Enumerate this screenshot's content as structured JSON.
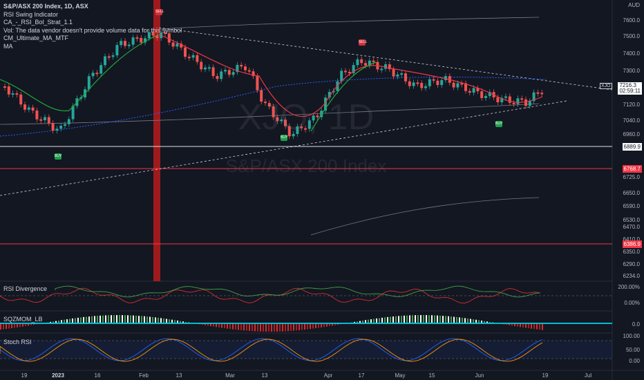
{
  "legend": {
    "symbol": "S&P/ASX 200 Index, 1D, ASX",
    "lines": [
      "RSI Swing Indicator",
      "CA_-_RSI_Bol_Strat_1.1",
      "Vol: The data vendor doesn't provide volume data for this symbol",
      "CM_Ultimate_MA_MTF",
      "MA"
    ]
  },
  "watermark": {
    "ticker": "XJO, 1D",
    "name": "S&P/ASX 200 Index"
  },
  "currency": "AUD",
  "price_ticks": [
    "7600.0",
    "7500.0",
    "7400.0",
    "7300.0",
    "7120.0",
    "7040.0",
    "6960.0",
    "6725.0",
    "6650.0",
    "6590.0",
    "6530.0",
    "6470.0",
    "6410.0",
    "6350.0",
    "6290.0",
    "6234.0"
  ],
  "price_tags": {
    "current": {
      "value": "7216.3",
      "countdown": "02:59:11",
      "color": "#ffffff"
    },
    "xjo_label": "XJO",
    "levels": [
      {
        "value": "6889.9",
        "color": "#ffffff"
      },
      {
        "value": "6768.7",
        "color": "#f23645"
      },
      {
        "value": "6386.9",
        "color": "#f23645"
      }
    ]
  },
  "time_ticks": [
    {
      "label": "19",
      "bold": false
    },
    {
      "label": "2023",
      "bold": true
    },
    {
      "label": "16",
      "bold": false
    },
    {
      "label": "Feb",
      "bold": false
    },
    {
      "label": "13",
      "bold": false
    },
    {
      "label": "Mar",
      "bold": false
    },
    {
      "label": "13",
      "bold": false
    },
    {
      "label": "Apr",
      "bold": false
    },
    {
      "label": "17",
      "bold": false
    },
    {
      "label": "May",
      "bold": false
    },
    {
      "label": "15",
      "bold": false
    },
    {
      "label": "Jun",
      "bold": false
    },
    {
      "label": "19",
      "bold": false
    },
    {
      "label": "Jul",
      "bold": false
    }
  ],
  "panels": {
    "rsi_divergence": {
      "label": "RSI Divergence",
      "ticks": [
        "200.00%",
        "0.00%"
      ]
    },
    "sqzmom": {
      "label": "SQZMOM_LB",
      "ticks": [
        "0.0"
      ]
    },
    "stoch_rsi": {
      "label": "Stoch RSI",
      "ticks": [
        "100.00",
        "50.00",
        "0.00"
      ]
    }
  },
  "signals": {
    "buy_label": "BUY",
    "sell_label": "SELL"
  },
  "colors": {
    "up": "#26a69a",
    "down": "#ef5350",
    "ma_red": "#f23645",
    "ma_green": "#22ab38",
    "background": "#131722"
  }
}
